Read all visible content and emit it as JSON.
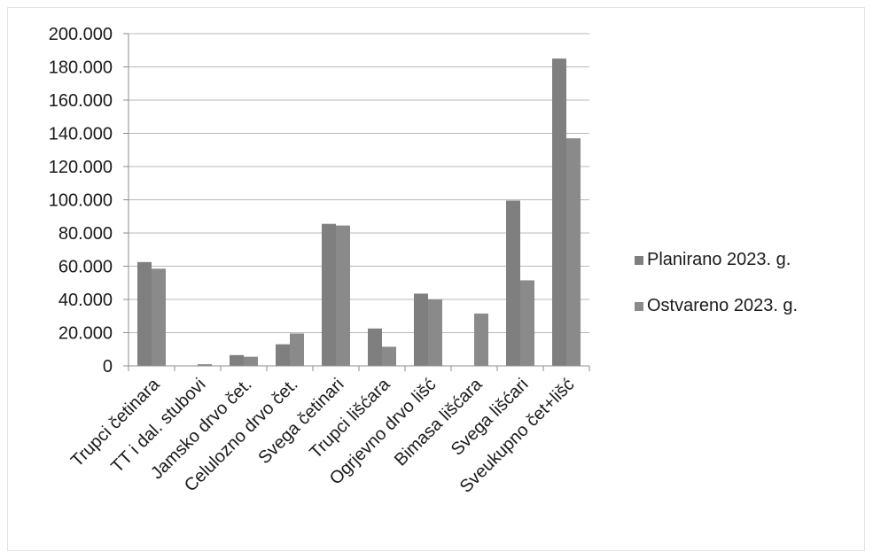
{
  "chart_data": {
    "type": "bar",
    "categories": [
      "Trupci četinara",
      "TT i dal. stubovi",
      "Jamsko drvo čet.",
      "Celulozno drvo čet.",
      "Svega četinari",
      "Trupci lišćara",
      "Ogrjevno drvo lišć",
      "Bimasa lišćara",
      "Svega lišćari",
      "Sveukupno čet+lišć"
    ],
    "series": [
      {
        "name": "Planirano  2023. g.",
        "color": "#7f7f7f",
        "values": [
          62500,
          0,
          6500,
          13000,
          85500,
          22500,
          43500,
          0,
          99500,
          185000
        ]
      },
      {
        "name": "Ostvareno  2023. g.",
        "color": "#8a8a8a",
        "values": [
          58500,
          1000,
          5500,
          19500,
          84500,
          11500,
          40000,
          31500,
          51500,
          137000
        ]
      }
    ],
    "yticks": [
      "0",
      "20.000",
      "40.000",
      "60.000",
      "80.000",
      "100.000",
      "120.000",
      "140.000",
      "160.000",
      "180.000",
      "200.000"
    ],
    "ylim": [
      0,
      200000
    ],
    "grid": true,
    "legend_position": "right",
    "title": "",
    "xlabel": "",
    "ylabel": ""
  }
}
